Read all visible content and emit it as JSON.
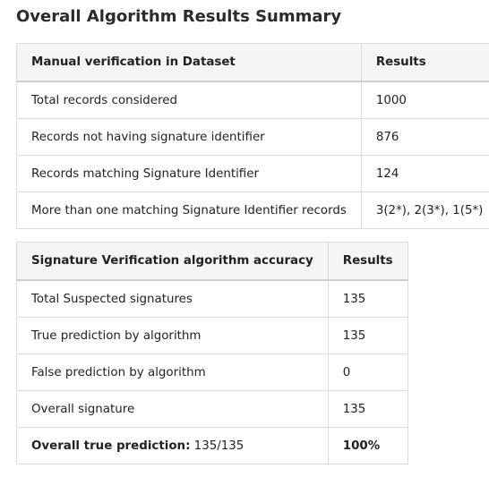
{
  "page": {
    "title": "Overall Algorithm Results Summary"
  },
  "table1": {
    "headers": [
      "Manual verification in Dataset",
      "Results"
    ],
    "rows": [
      {
        "label": "Total records considered",
        "value": "1000"
      },
      {
        "label": "Records not having signature identifier",
        "value": "876"
      },
      {
        "label": "Records matching Signature Identifier",
        "value": "124"
      },
      {
        "label": "More than one matching Signature Identifier records",
        "value": "3(2*), 2(3*), 1(5*)"
      }
    ]
  },
  "table2": {
    "headers": [
      "Signature Verification algorithm accuracy",
      "Results"
    ],
    "rows": [
      {
        "label": "Total Suspected signatures",
        "value": "135"
      },
      {
        "label": "True prediction by algorithm",
        "value": "135"
      },
      {
        "label": "False prediction by algorithm",
        "value": "0"
      },
      {
        "label": "Overall signature",
        "value": "135"
      }
    ],
    "summary": {
      "label_bold": "Overall true prediction:",
      "label_rest": " 135/135",
      "value": "100%"
    }
  }
}
